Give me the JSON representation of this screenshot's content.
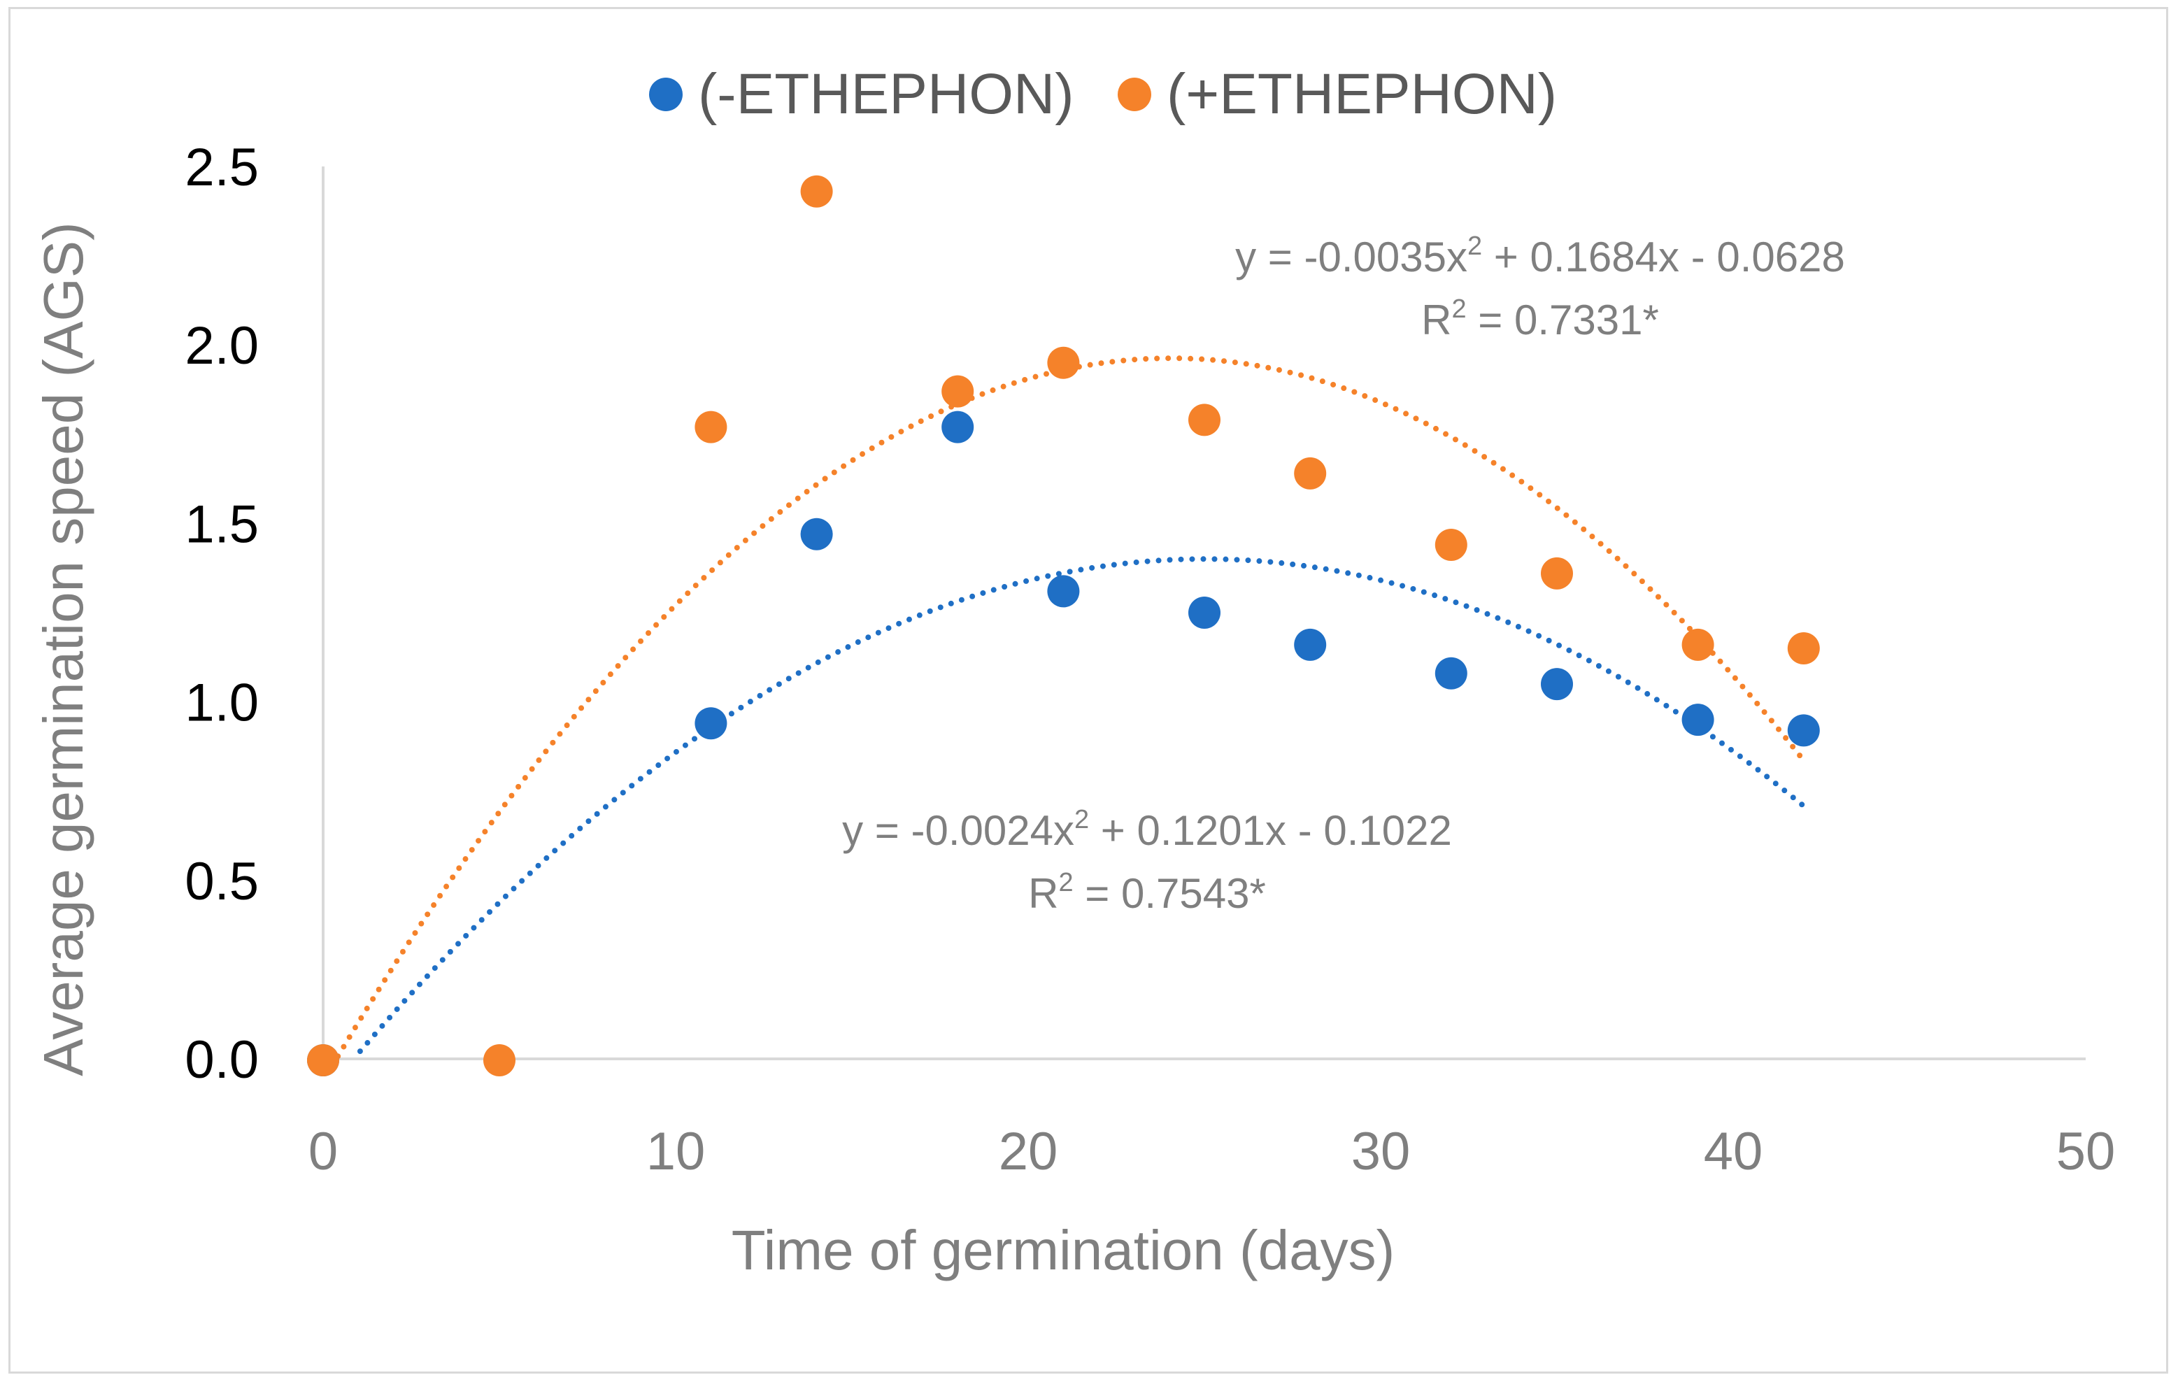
{
  "chart_data": {
    "type": "scatter",
    "title": "",
    "xlabel": "Time of germination (days)",
    "ylabel": "Average germination speed (AGS)",
    "xlim": [
      0,
      50
    ],
    "ylim": [
      0,
      2.5
    ],
    "xticks": [
      "0",
      "10",
      "20",
      "30",
      "40",
      "50"
    ],
    "yticks": [
      "0.0",
      "0.5",
      "1.0",
      "1.5",
      "2.0",
      "2.5"
    ],
    "legend_position": "top-center",
    "grid": false,
    "series": [
      {
        "name": "(-ETHEPHON)",
        "color": "#1f6fc5",
        "x": [
          0,
          11,
          14,
          18,
          21,
          25,
          28,
          32,
          35,
          39,
          42
        ],
        "y": [
          0.0,
          0.94,
          1.47,
          1.77,
          1.31,
          1.25,
          1.16,
          1.08,
          1.05,
          0.95,
          0.92
        ],
        "trendline": {
          "type": "polynomial",
          "order": 2,
          "coefficients": [
            -0.0024,
            0.1201,
            -0.1022
          ],
          "x_range": [
            0,
            42
          ],
          "equation_prefix": "y = -0.0024x",
          "equation_exp": "2",
          "equation_suffix": " + 0.1201x - 0.1022",
          "r2_prefix": "R",
          "r2_exp": "2",
          "r2_suffix": " = 0.7543*"
        }
      },
      {
        "name": "(+ETHEPHON)",
        "color": "#f5822a",
        "x": [
          0,
          5,
          11,
          14,
          18,
          21,
          25,
          28,
          32,
          35,
          39,
          42
        ],
        "y": [
          0.0,
          0.0,
          1.77,
          2.43,
          1.87,
          1.95,
          1.79,
          1.64,
          1.44,
          1.36,
          1.16,
          1.15
        ],
        "trendline": {
          "type": "polynomial",
          "order": 2,
          "coefficients": [
            -0.0035,
            0.1684,
            -0.0628
          ],
          "x_range": [
            0,
            42
          ],
          "equation_prefix": "y = -0.0035x",
          "equation_exp": "2",
          "equation_suffix": " + 0.1684x - 0.0628",
          "r2_prefix": "R",
          "r2_exp": "2",
          "r2_suffix": " = 0.7331*"
        }
      }
    ]
  },
  "colors": {
    "axis_line": "#d9d9d9",
    "y_tick_text": "#000000",
    "x_tick_text": "#7f7f7f"
  }
}
